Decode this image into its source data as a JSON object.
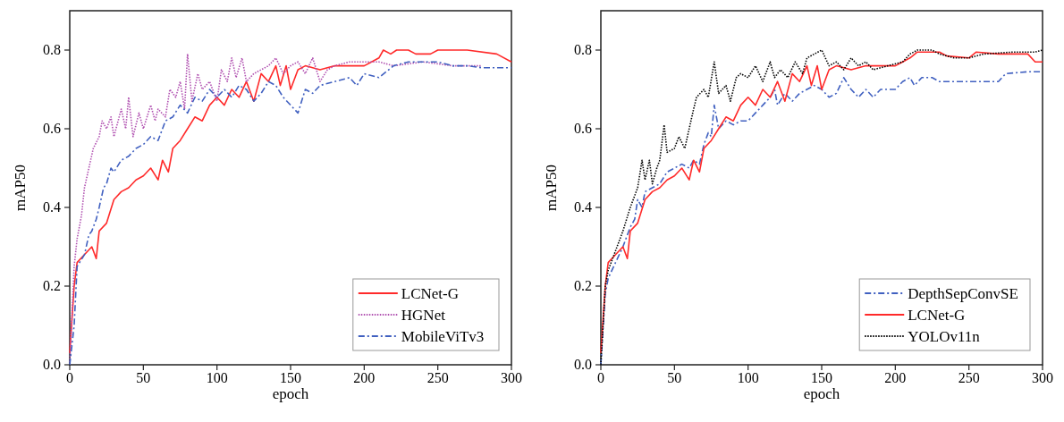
{
  "chart_data": [
    {
      "type": "line",
      "xlabel": "epoch",
      "ylabel": "mAP50",
      "xlim": [
        0,
        300
      ],
      "ylim": [
        0,
        0.9
      ],
      "xticks": [
        0,
        50,
        100,
        150,
        200,
        250,
        300
      ],
      "yticks": [
        {
          "value": 0,
          "label": "0.0"
        },
        0.2,
        0.4,
        0.6,
        0.8
      ],
      "legend": "bottom right",
      "grid": false,
      "marker": "none",
      "series": [
        {
          "name": "LCNet-G",
          "color": "#ff2a2a",
          "line_style": "solid",
          "x": [
            0,
            3,
            5,
            10,
            15,
            18,
            20,
            25,
            30,
            35,
            40,
            45,
            50,
            55,
            60,
            63,
            67,
            70,
            75,
            80,
            85,
            90,
            95,
            100,
            105,
            110,
            115,
            120,
            125,
            130,
            135,
            140,
            143,
            147,
            150,
            155,
            160,
            170,
            180,
            190,
            200,
            205,
            210,
            213,
            218,
            222,
            230,
            235,
            245,
            250,
            270,
            290,
            300
          ],
          "values": [
            0.03,
            0.2,
            0.26,
            0.28,
            0.3,
            0.27,
            0.34,
            0.36,
            0.42,
            0.44,
            0.45,
            0.47,
            0.48,
            0.5,
            0.47,
            0.52,
            0.49,
            0.55,
            0.57,
            0.6,
            0.63,
            0.62,
            0.66,
            0.68,
            0.66,
            0.7,
            0.68,
            0.72,
            0.67,
            0.74,
            0.72,
            0.76,
            0.71,
            0.76,
            0.7,
            0.75,
            0.76,
            0.75,
            0.76,
            0.76,
            0.76,
            0.77,
            0.78,
            0.8,
            0.79,
            0.8,
            0.8,
            0.79,
            0.79,
            0.8,
            0.8,
            0.79,
            0.77
          ]
        },
        {
          "name": "HGNet",
          "color": "#b050b0",
          "line_style": "dotted",
          "x": [
            0,
            3,
            5,
            8,
            10,
            13,
            16,
            20,
            22,
            25,
            28,
            30,
            35,
            38,
            40,
            43,
            47,
            50,
            55,
            58,
            60,
            65,
            68,
            72,
            75,
            78,
            80,
            83,
            87,
            90,
            95,
            100,
            103,
            107,
            110,
            113,
            117,
            120,
            125,
            130,
            135,
            140,
            145,
            150,
            155,
            160,
            165,
            170,
            175,
            180,
            190,
            200,
            210,
            220,
            240,
            260,
            280
          ],
          "values": [
            0,
            0.25,
            0.32,
            0.38,
            0.45,
            0.5,
            0.55,
            0.58,
            0.62,
            0.6,
            0.63,
            0.58,
            0.65,
            0.6,
            0.68,
            0.58,
            0.64,
            0.6,
            0.66,
            0.62,
            0.65,
            0.63,
            0.7,
            0.68,
            0.72,
            0.65,
            0.79,
            0.67,
            0.74,
            0.7,
            0.72,
            0.67,
            0.75,
            0.72,
            0.78,
            0.73,
            0.78,
            0.72,
            0.74,
            0.75,
            0.76,
            0.78,
            0.74,
            0.76,
            0.77,
            0.74,
            0.78,
            0.72,
            0.75,
            0.76,
            0.77,
            0.77,
            0.77,
            0.76,
            0.77,
            0.76,
            0.76
          ]
        },
        {
          "name": "MobileViTv3",
          "color": "#4060c0",
          "line_style": "dashed",
          "x": [
            0,
            3,
            5,
            10,
            13,
            15,
            18,
            20,
            23,
            25,
            28,
            30,
            35,
            40,
            45,
            50,
            55,
            60,
            65,
            70,
            75,
            80,
            85,
            90,
            95,
            100,
            105,
            110,
            115,
            120,
            125,
            130,
            135,
            140,
            145,
            150,
            155,
            160,
            165,
            170,
            180,
            190,
            195,
            200,
            210,
            220,
            230,
            240,
            250,
            260,
            270,
            280,
            300
          ],
          "values": [
            0,
            0.1,
            0.25,
            0.28,
            0.33,
            0.34,
            0.37,
            0.4,
            0.45,
            0.46,
            0.5,
            0.49,
            0.52,
            0.53,
            0.55,
            0.56,
            0.58,
            0.57,
            0.62,
            0.63,
            0.66,
            0.64,
            0.68,
            0.67,
            0.7,
            0.68,
            0.7,
            0.68,
            0.71,
            0.7,
            0.67,
            0.69,
            0.72,
            0.71,
            0.68,
            0.66,
            0.64,
            0.7,
            0.69,
            0.71,
            0.72,
            0.73,
            0.71,
            0.74,
            0.73,
            0.76,
            0.77,
            0.77,
            0.77,
            0.76,
            0.76,
            0.755,
            0.755
          ]
        }
      ]
    },
    {
      "type": "line",
      "xlabel": "epoch",
      "ylabel": "mAP50",
      "xlim": [
        0,
        300
      ],
      "ylim": [
        0,
        0.9
      ],
      "xticks": [
        0,
        50,
        100,
        150,
        200,
        250,
        300
      ],
      "yticks": [
        {
          "value": 0,
          "label": "0.0"
        },
        0.2,
        0.4,
        0.6,
        0.8
      ],
      "legend": "bottom right",
      "grid": false,
      "marker": "none",
      "series": [
        {
          "name": "DepthSepConvSE",
          "color": "#4060c0",
          "line_style": "dashed",
          "x": [
            0,
            3,
            5,
            10,
            15,
            20,
            23,
            25,
            28,
            30,
            35,
            40,
            45,
            50,
            55,
            60,
            63,
            67,
            70,
            73,
            75,
            77,
            80,
            85,
            90,
            95,
            100,
            105,
            110,
            115,
            118,
            120,
            125,
            130,
            135,
            140,
            145,
            150,
            155,
            160,
            165,
            170,
            175,
            180,
            185,
            190,
            200,
            205,
            210,
            213,
            218,
            225,
            230,
            250,
            270,
            275,
            290,
            300
          ],
          "values": [
            0,
            0.18,
            0.22,
            0.26,
            0.3,
            0.35,
            0.37,
            0.42,
            0.4,
            0.44,
            0.45,
            0.46,
            0.49,
            0.5,
            0.51,
            0.5,
            0.52,
            0.51,
            0.56,
            0.59,
            0.58,
            0.66,
            0.6,
            0.62,
            0.61,
            0.62,
            0.62,
            0.64,
            0.66,
            0.68,
            0.7,
            0.66,
            0.69,
            0.67,
            0.69,
            0.7,
            0.71,
            0.7,
            0.68,
            0.69,
            0.73,
            0.7,
            0.68,
            0.7,
            0.68,
            0.7,
            0.7,
            0.72,
            0.73,
            0.71,
            0.73,
            0.73,
            0.72,
            0.72,
            0.72,
            0.74,
            0.745,
            0.745
          ]
        },
        {
          "name": "LCNet-G",
          "color": "#ff2a2a",
          "line_style": "solid",
          "x": [
            0,
            3,
            5,
            10,
            15,
            18,
            20,
            25,
            30,
            35,
            40,
            45,
            50,
            55,
            60,
            63,
            67,
            70,
            75,
            80,
            85,
            90,
            95,
            100,
            105,
            110,
            115,
            120,
            125,
            130,
            135,
            140,
            143,
            147,
            150,
            155,
            160,
            170,
            180,
            190,
            200,
            205,
            210,
            215,
            220,
            230,
            235,
            250,
            255,
            270,
            290,
            295,
            300
          ],
          "values": [
            0.03,
            0.2,
            0.26,
            0.28,
            0.3,
            0.27,
            0.34,
            0.36,
            0.42,
            0.44,
            0.45,
            0.47,
            0.48,
            0.5,
            0.47,
            0.52,
            0.49,
            0.55,
            0.57,
            0.6,
            0.63,
            0.62,
            0.66,
            0.68,
            0.66,
            0.7,
            0.68,
            0.72,
            0.67,
            0.74,
            0.72,
            0.76,
            0.71,
            0.76,
            0.7,
            0.75,
            0.76,
            0.75,
            0.76,
            0.76,
            0.76,
            0.77,
            0.78,
            0.795,
            0.795,
            0.795,
            0.785,
            0.78,
            0.795,
            0.79,
            0.79,
            0.77,
            0.77
          ]
        },
        {
          "name": "YOLOv11n",
          "color": "#000000",
          "line_style": "dotted",
          "x": [
            0,
            3,
            5,
            10,
            15,
            20,
            25,
            28,
            30,
            33,
            35,
            38,
            40,
            43,
            45,
            50,
            53,
            57,
            60,
            63,
            65,
            70,
            73,
            77,
            80,
            85,
            88,
            92,
            95,
            100,
            105,
            110,
            115,
            118,
            122,
            127,
            132,
            137,
            140,
            145,
            150,
            155,
            160,
            165,
            170,
            175,
            180,
            185,
            195,
            205,
            210,
            215,
            225,
            230,
            240,
            250,
            260,
            280,
            295,
            300
          ],
          "values": [
            0,
            0.2,
            0.24,
            0.29,
            0.34,
            0.4,
            0.45,
            0.52,
            0.47,
            0.52,
            0.46,
            0.5,
            0.52,
            0.61,
            0.54,
            0.55,
            0.58,
            0.55,
            0.6,
            0.65,
            0.68,
            0.7,
            0.68,
            0.77,
            0.69,
            0.71,
            0.67,
            0.73,
            0.74,
            0.73,
            0.76,
            0.72,
            0.77,
            0.73,
            0.75,
            0.73,
            0.77,
            0.74,
            0.78,
            0.79,
            0.8,
            0.76,
            0.77,
            0.75,
            0.78,
            0.76,
            0.77,
            0.75,
            0.76,
            0.77,
            0.79,
            0.8,
            0.8,
            0.79,
            0.78,
            0.78,
            0.79,
            0.795,
            0.795,
            0.8
          ]
        }
      ]
    }
  ]
}
